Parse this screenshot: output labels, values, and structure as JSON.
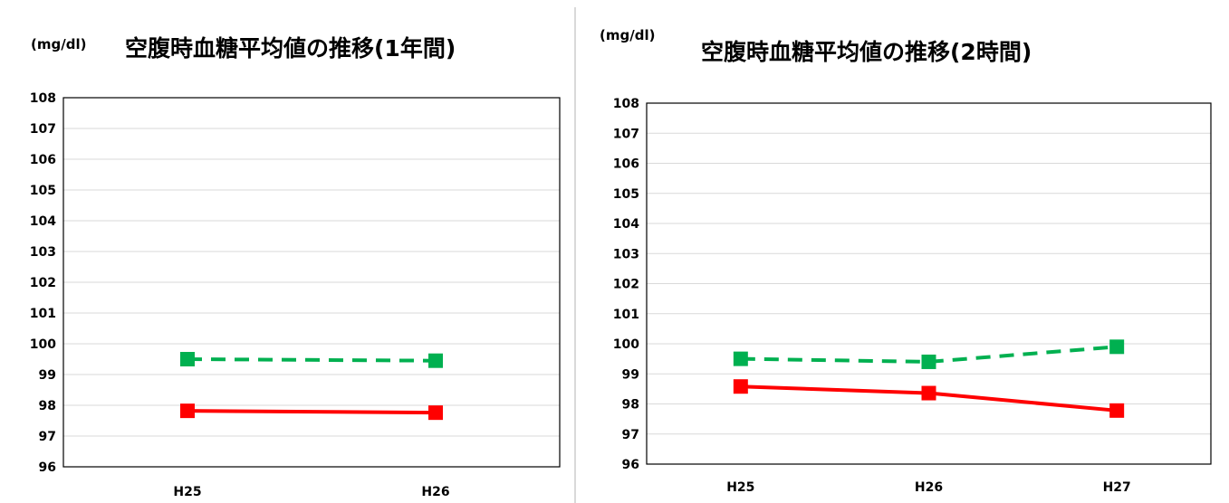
{
  "chart_data": [
    {
      "type": "line",
      "title": "空腹時血糖平均値の推移(1年間)",
      "unit_label": "(mg/dl)",
      "categories": [
        "H25",
        "H26"
      ],
      "ylim": [
        96,
        108
      ],
      "yticks": [
        96,
        97,
        98,
        99,
        100,
        101,
        102,
        103,
        104,
        105,
        106,
        107,
        108
      ],
      "grid": true,
      "series": [
        {
          "values": [
            99.5,
            99.45
          ],
          "color": "#00b050",
          "dashed": true,
          "marker": "square"
        },
        {
          "values": [
            97.82,
            97.76
          ],
          "color": "#ff0000",
          "dashed": false,
          "marker": "square"
        }
      ]
    },
    {
      "type": "line",
      "title": "空腹時血糖平均値の推移(2時間)",
      "unit_label": "(mg/dl)",
      "categories": [
        "H25",
        "H26",
        "H27"
      ],
      "ylim": [
        96,
        108
      ],
      "yticks": [
        96,
        97,
        98,
        99,
        100,
        101,
        102,
        103,
        104,
        105,
        106,
        107,
        108
      ],
      "grid": true,
      "series": [
        {
          "values": [
            99.5,
            99.4,
            99.9
          ],
          "color": "#00b050",
          "dashed": true,
          "marker": "square"
        },
        {
          "values": [
            98.58,
            98.36,
            97.78
          ],
          "color": "#ff0000",
          "dashed": false,
          "marker": "square"
        }
      ]
    }
  ]
}
